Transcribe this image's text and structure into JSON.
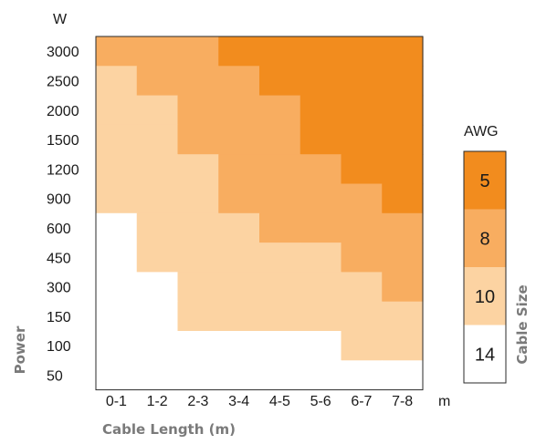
{
  "chart_data": {
    "type": "heatmap",
    "xlabel": "Cable Length (m)",
    "ylabel": "Power",
    "x_unit": "m",
    "y_unit": "W",
    "x_categories": [
      "0-1",
      "1-2",
      "2-3",
      "3-4",
      "4-5",
      "5-6",
      "6-7",
      "7-8"
    ],
    "y_categories": [
      "3000",
      "2500",
      "2000",
      "1500",
      "1200",
      "900",
      "600",
      "450",
      "300",
      "150",
      "100",
      "50"
    ],
    "values": [
      [
        8,
        8,
        8,
        5,
        5,
        5,
        5,
        5
      ],
      [
        10,
        8,
        8,
        8,
        5,
        5,
        5,
        5
      ],
      [
        10,
        10,
        8,
        8,
        8,
        5,
        5,
        5
      ],
      [
        10,
        10,
        8,
        8,
        8,
        5,
        5,
        5
      ],
      [
        10,
        10,
        10,
        8,
        8,
        8,
        5,
        5
      ],
      [
        10,
        10,
        10,
        8,
        8,
        8,
        8,
        5
      ],
      [
        14,
        10,
        10,
        10,
        8,
        8,
        8,
        8
      ],
      [
        14,
        10,
        10,
        10,
        10,
        10,
        8,
        8
      ],
      [
        14,
        14,
        10,
        10,
        10,
        10,
        10,
        8
      ],
      [
        14,
        14,
        10,
        10,
        10,
        10,
        10,
        10
      ],
      [
        14,
        14,
        14,
        14,
        14,
        14,
        10,
        10
      ],
      [
        14,
        14,
        14,
        14,
        14,
        14,
        14,
        14
      ]
    ],
    "legend": {
      "title": "AWG",
      "label": "Cable Size",
      "entries": [
        {
          "value": "5",
          "color": "#f28c1e"
        },
        {
          "value": "8",
          "color": "#f8ad60"
        },
        {
          "value": "10",
          "color": "#fcd3a2"
        },
        {
          "value": "14",
          "color": "#ffffff"
        }
      ]
    }
  }
}
